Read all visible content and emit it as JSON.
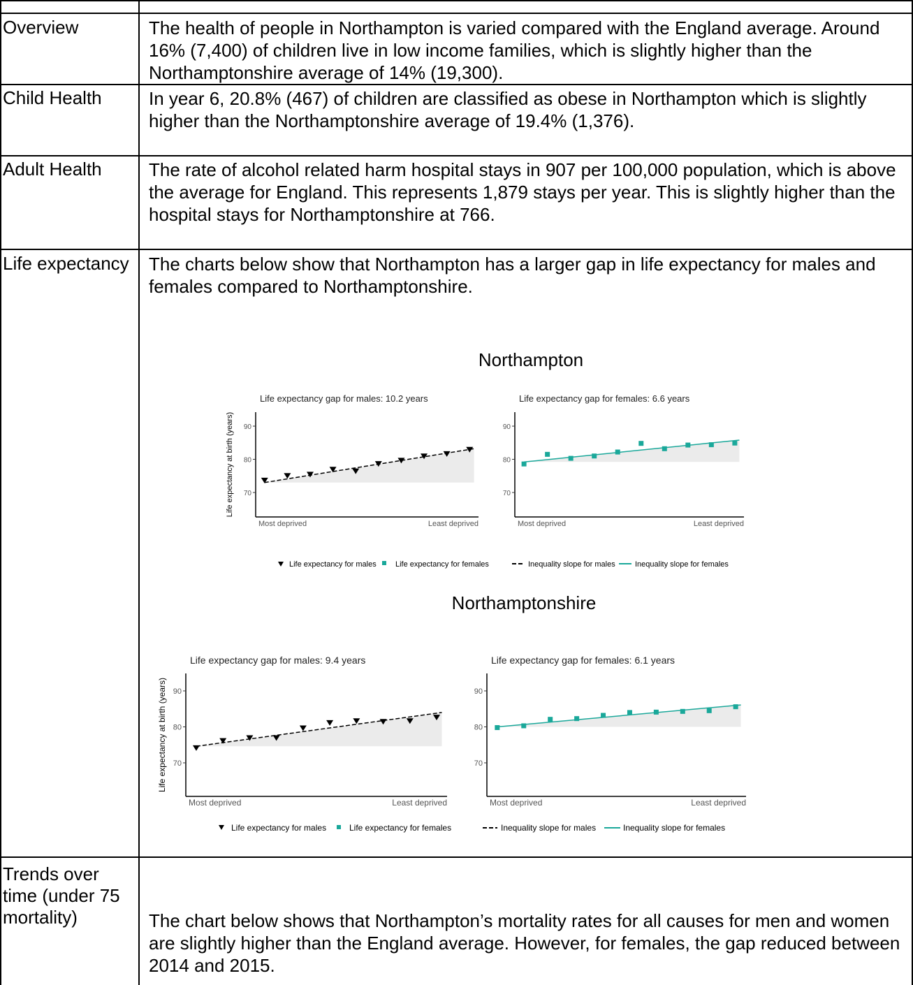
{
  "rows": [
    {
      "label": "Overview",
      "text": "The health of people in Northampton is varied compared with the England average.  Around 16% (7,400) of children live in low income families, which is slightly higher than the Northamptonshire average of 14% (19,300)."
    },
    {
      "label": "Child Health",
      "text": "In year 6, 20.8% (467) of children are classified as obese in Northampton which is slightly higher than the Northamptonshire average of 19.4% (1,376)."
    },
    {
      "label": "Adult Health",
      "text": "The rate of alcohol related harm hospital stays in 907 per 100,000 population, which is above the average for England.  This represents 1,879 stays per year.  This is slightly higher than the hospital stays for Northamptonshire at 766."
    },
    {
      "label": "Life expectancy",
      "text": "The charts below show that Northampton has a larger gap in life expectancy for males and females compared to Northamptonshire."
    },
    {
      "label": "Trends over time (under 75 mortality)",
      "text": "The chart below shows that Northampton’s mortality rates for all causes for men and women are slightly higher than the England average.  However, for females, the gap reduced between 2014 and 2015."
    }
  ],
  "colors": {
    "male": "#000000",
    "female": "#1aa89a",
    "shade": "#ebebeb"
  },
  "chart_data": [
    {
      "type": "scatter",
      "area": "Northampton",
      "title": "Life expectancy gap for males: 10.2 years",
      "ylabel": "Life expectancy at birth (years)",
      "x_low_label": "Most deprived",
      "x_high_label": "Least deprived",
      "ylim": [
        67.5,
        95
      ],
      "yticks": [
        70,
        80,
        90
      ],
      "marker": "triangle",
      "color": "#000000",
      "values": [
        73.6,
        75.0,
        75.4,
        76.9,
        76.4,
        78.6,
        79.6,
        80.9,
        81.6,
        82.9
      ],
      "slope": [
        73.0,
        83.2
      ]
    },
    {
      "type": "scatter",
      "area": "Northampton",
      "title": "Life expectancy gap for females: 6.6 years",
      "ylabel": "",
      "x_low_label": "Most deprived",
      "x_high_label": "Least deprived",
      "ylim": [
        67.5,
        95
      ],
      "yticks": [
        70,
        80,
        90
      ],
      "marker": "square",
      "color": "#1aa89a",
      "values": [
        78.6,
        81.5,
        80.3,
        81.0,
        82.2,
        84.8,
        83.2,
        84.3,
        84.4,
        84.9
      ],
      "slope": [
        79.2,
        85.8
      ]
    },
    {
      "type": "scatter",
      "area": "Northamptonshire",
      "title": "Life expectancy gap for males: 9.4 years",
      "ylabel": "Life expectancy at birth (years)",
      "x_low_label": "Most deprived",
      "x_high_label": "Least deprived",
      "ylim": [
        67.5,
        95
      ],
      "yticks": [
        70,
        80,
        90
      ],
      "marker": "triangle",
      "color": "#000000",
      "values": [
        74.1,
        76.1,
        76.9,
        76.9,
        79.6,
        81.1,
        81.6,
        81.4,
        81.6,
        82.6
      ],
      "slope": [
        74.6,
        84.0
      ]
    },
    {
      "type": "scatter",
      "area": "Northamptonshire",
      "title": "Life expectancy gap for females: 6.1 years",
      "ylabel": "",
      "x_low_label": "Most deprived",
      "x_high_label": "Least deprived",
      "ylim": [
        67.5,
        95
      ],
      "yticks": [
        70,
        80,
        90
      ],
      "marker": "square",
      "color": "#1aa89a",
      "values": [
        79.8,
        80.3,
        82.1,
        82.3,
        83.2,
        84.0,
        84.1,
        84.3,
        84.5,
        85.6
      ],
      "slope": [
        80.0,
        86.1
      ]
    }
  ],
  "chart_groups": [
    {
      "heading": "Northampton",
      "legend": {
        "males_points": "Life expectancy for males",
        "females_points": "Life expectancy for females",
        "males_slope": "Inequality slope for males",
        "females_slope": "Inequality slope for females"
      }
    },
    {
      "heading": "Northamptonshire",
      "legend": {
        "males_points": "Life expectancy for males",
        "females_points": "Life expectancy for females",
        "males_slope": "Inequality slope for males",
        "females_slope": "Inequality slope for females"
      }
    }
  ]
}
